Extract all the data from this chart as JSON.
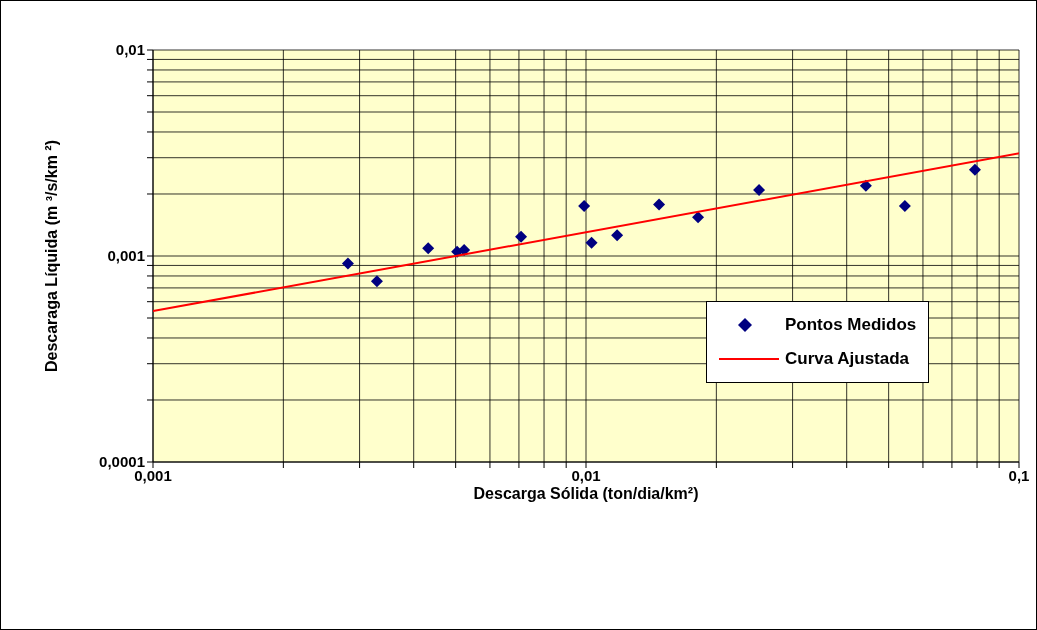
{
  "chart_data": {
    "type": "scatter",
    "xlabel": "Descarga Sólida (ton/dia/km²)",
    "ylabel": "Descaraga Líquida (m ³/s/km ²)",
    "log": "xy",
    "grid": true,
    "legend": "right",
    "xlim": [
      0.001,
      0.1
    ],
    "xticks": [
      {
        "value": 0.001,
        "label": "0,001"
      },
      {
        "value": 0.002,
        "label": null
      },
      {
        "value": 0.003,
        "label": null
      },
      {
        "value": 0.004,
        "label": null
      },
      {
        "value": 0.005,
        "label": null
      },
      {
        "value": 0.006,
        "label": null
      },
      {
        "value": 0.007,
        "label": null
      },
      {
        "value": 0.008,
        "label": null
      },
      {
        "value": 0.009,
        "label": null
      },
      {
        "value": 0.01,
        "label": "0,01"
      },
      {
        "value": 0.02,
        "label": null
      },
      {
        "value": 0.03,
        "label": null
      },
      {
        "value": 0.04,
        "label": null
      },
      {
        "value": 0.05,
        "label": null
      },
      {
        "value": 0.06,
        "label": null
      },
      {
        "value": 0.07,
        "label": null
      },
      {
        "value": 0.08,
        "label": null
      },
      {
        "value": 0.09,
        "label": null
      },
      {
        "value": 0.1,
        "label": "0,1"
      }
    ],
    "ylim": [
      0.0001,
      0.01
    ],
    "yticks": [
      {
        "value": 0.0001,
        "label": "0,0001"
      },
      {
        "value": 0.0002,
        "label": null
      },
      {
        "value": 0.0003,
        "label": null
      },
      {
        "value": 0.0004,
        "label": null
      },
      {
        "value": 0.0005,
        "label": null
      },
      {
        "value": 0.0006,
        "label": null
      },
      {
        "value": 0.0007,
        "label": null
      },
      {
        "value": 0.0008,
        "label": null
      },
      {
        "value": 0.0009,
        "label": null
      },
      {
        "value": 0.001,
        "label": "0,001"
      },
      {
        "value": 0.002,
        "label": null
      },
      {
        "value": 0.003,
        "label": null
      },
      {
        "value": 0.004,
        "label": null
      },
      {
        "value": 0.005,
        "label": null
      },
      {
        "value": 0.006,
        "label": null
      },
      {
        "value": 0.007,
        "label": null
      },
      {
        "value": 0.008,
        "label": null
      },
      {
        "value": 0.009,
        "label": null
      },
      {
        "value": 0.01,
        "label": "0,01"
      }
    ],
    "series": [
      {
        "name": "Pontos Medidos",
        "type": "scatter",
        "marker": "diamond",
        "color": "#000080",
        "x": [
          0.00282,
          0.00329,
          0.00432,
          0.00504,
          0.00523,
          0.00708,
          0.0099,
          0.0103,
          0.0118,
          0.01475,
          0.01815,
          0.0251,
          0.0443,
          0.0545,
          0.0791
        ],
        "values": [
          0.00092,
          0.000755,
          0.00109,
          0.00105,
          0.00107,
          0.00124,
          0.00175,
          0.00116,
          0.00126,
          0.00178,
          0.00154,
          0.00209,
          0.00219,
          0.00175,
          0.00262
        ]
      },
      {
        "name": "Curva Ajustada",
        "type": "line",
        "marker": "none",
        "line_style": "solid",
        "color": "#ff0000",
        "x": [
          0.001,
          0.1
        ],
        "values": [
          0.00054,
          0.00315
        ]
      }
    ]
  }
}
